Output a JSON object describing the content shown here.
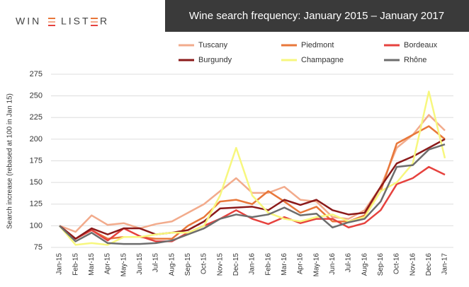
{
  "logo": {
    "left": "WIN",
    "middle": "LIST",
    "right": "R"
  },
  "chart_data": {
    "type": "line",
    "title": "Wine search frequency: January 2015 – January 2017",
    "y_label": "Search increase (rebased at 100 in Jan 15)",
    "categories": [
      "Jan-15",
      "Feb-15",
      "Mar-15",
      "Apr-15",
      "May-15",
      "Jun-15",
      "Jul-15",
      "Aug-15",
      "Sep-15",
      "Oct-15",
      "Nov-15",
      "Dec-15",
      "Jan-16",
      "Feb-16",
      "Mar-16",
      "Apr-16",
      "May-16",
      "Jun-16",
      "Jul-16",
      "Aug-16",
      "Sep-16",
      "Oct-16",
      "Nov-16",
      "Dec-16",
      "Jan-17"
    ],
    "ylim": [
      75,
      275
    ],
    "yticks": [
      75,
      100,
      125,
      150,
      175,
      200,
      225,
      250,
      275
    ],
    "grid": true,
    "series": [
      {
        "name": "Tuscany",
        "color": "#f2ab8c",
        "values": [
          100,
          93,
          112,
          101,
          103,
          97,
          102,
          105,
          115,
          125,
          140,
          155,
          138,
          138,
          145,
          130,
          128,
          110,
          108,
          118,
          145,
          190,
          205,
          228,
          210
        ]
      },
      {
        "name": "Piedmont",
        "color": "#e8773a",
        "values": [
          100,
          85,
          95,
          85,
          87,
          87,
          85,
          85,
          100,
          110,
          128,
          130,
          125,
          140,
          128,
          115,
          122,
          105,
          105,
          112,
          140,
          195,
          205,
          215,
          200
        ]
      },
      {
        "name": "Bordeaux",
        "color": "#e6423e",
        "values": [
          100,
          85,
          95,
          83,
          97,
          88,
          82,
          82,
          92,
          100,
          108,
          118,
          108,
          102,
          110,
          103,
          108,
          108,
          98,
          103,
          118,
          148,
          155,
          168,
          159
        ]
      },
      {
        "name": "Burgundy",
        "color": "#8b1a1a",
        "values": [
          100,
          85,
          97,
          90,
          97,
          97,
          90,
          92,
          95,
          105,
          120,
          121,
          122,
          118,
          130,
          124,
          130,
          118,
          113,
          115,
          145,
          172,
          180,
          190,
          200
        ]
      },
      {
        "name": "Champagne",
        "color": "#f7f77e",
        "values": [
          100,
          78,
          80,
          78,
          87,
          87,
          90,
          92,
          92,
          100,
          135,
          190,
          135,
          115,
          108,
          105,
          110,
          113,
          105,
          110,
          140,
          150,
          172,
          255,
          178
        ]
      },
      {
        "name": "Rhône",
        "color": "#6d6d6d",
        "values": [
          100,
          82,
          92,
          80,
          79,
          79,
          80,
          83,
          90,
          97,
          108,
          113,
          110,
          113,
          121,
          112,
          114,
          98,
          104,
          108,
          128,
          168,
          170,
          188,
          194
        ]
      }
    ]
  }
}
